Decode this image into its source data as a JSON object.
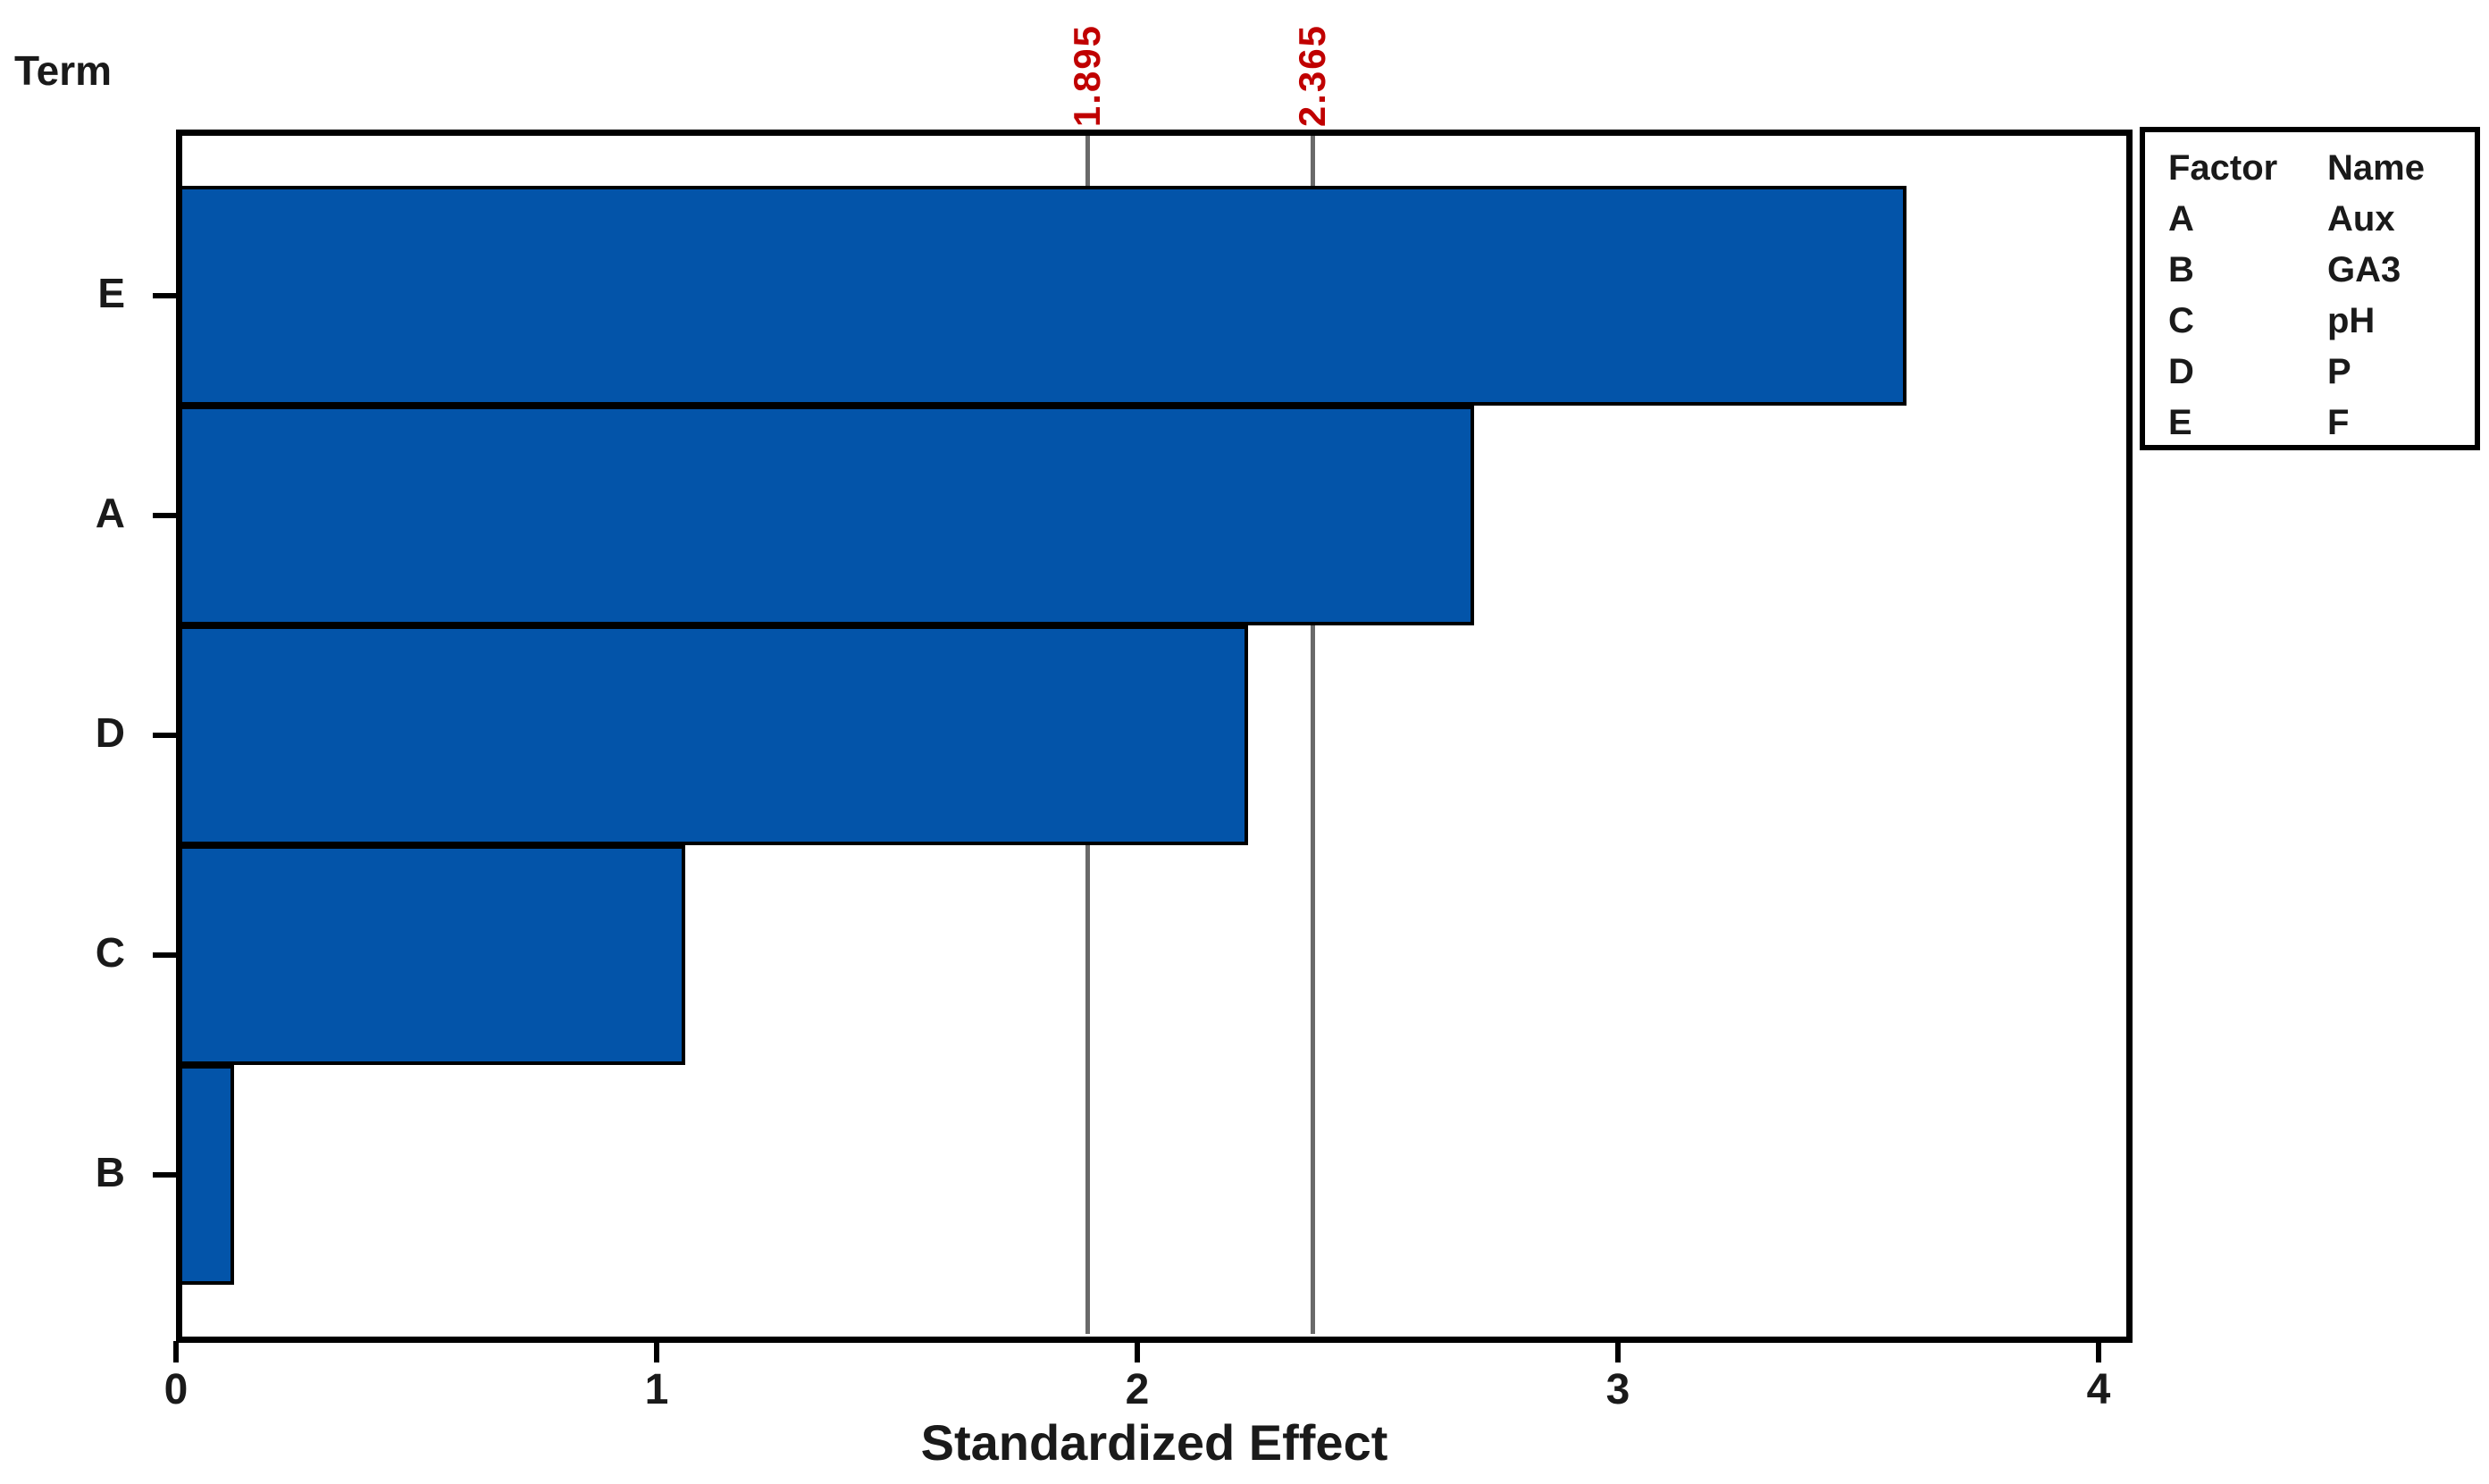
{
  "chart_data": {
    "type": "bar",
    "orientation": "horizontal",
    "title": "",
    "xlabel": "Standardized Effect",
    "ylabel": "Term",
    "categories": [
      "E",
      "A",
      "D",
      "C",
      "B"
    ],
    "values": [
      3.6,
      2.7,
      2.23,
      1.06,
      0.12
    ],
    "xlim": [
      0,
      4.07
    ],
    "xticks": [
      "0",
      "1",
      "2",
      "3",
      "4"
    ],
    "grid": false,
    "reference_lines": [
      {
        "value": 1.895,
        "label": "1.895"
      },
      {
        "value": 2.365,
        "label": "2.365"
      }
    ],
    "colors": {
      "bar_fill": "#0354a9",
      "bar_border": "#000000",
      "axis": "#000000",
      "reference_line": "#6a6a6a",
      "reference_label": "#c00000"
    },
    "legend": {
      "position": "top-right",
      "headers": [
        "Factor",
        "Name"
      ],
      "rows": [
        {
          "factor": "A",
          "name": "Aux"
        },
        {
          "factor": "B",
          "name": "GA3"
        },
        {
          "factor": "C",
          "name": "pH"
        },
        {
          "factor": "D",
          "name": "P"
        },
        {
          "factor": "E",
          "name": "F"
        }
      ]
    }
  }
}
